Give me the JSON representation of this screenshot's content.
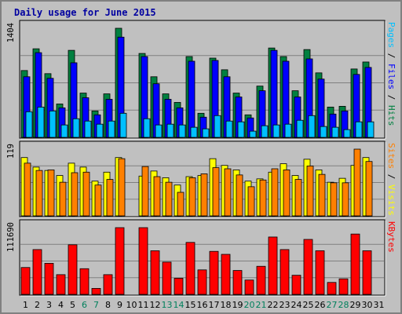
{
  "chart_data": {
    "type": "bar",
    "title": "Daily usage for June 2015",
    "categories": [
      "1",
      "2",
      "3",
      "4",
      "5",
      "6",
      "7",
      "8",
      "9",
      "10",
      "11",
      "12",
      "13",
      "14",
      "15",
      "16",
      "17",
      "18",
      "19",
      "20",
      "21",
      "22",
      "23",
      "24",
      "25",
      "26",
      "27",
      "28",
      "29",
      "30",
      "31"
    ],
    "weekend_days": [
      "6",
      "7",
      "13",
      "14",
      "20",
      "21",
      "27",
      "28"
    ],
    "panels": [
      {
        "id": "hits",
        "ymax_label": "1404",
        "ylim": [
          0,
          1404
        ],
        "series": [
          {
            "name": "Hits",
            "color": "#008040",
            "values": [
              860,
              1140,
              820,
              430,
              1120,
              570,
              340,
              560,
              1404,
              0,
              1080,
              780,
              560,
              450,
              1040,
              310,
              1020,
              870,
              570,
              290,
              660,
              1150,
              1040,
              600,
              1130,
              830,
              390,
              400,
              880,
              970,
              0
            ]
          },
          {
            "name": "Files",
            "color": "#0000ff",
            "values": [
              780,
              1090,
              760,
              380,
              960,
              510,
              290,
              490,
              1290,
              0,
              1040,
              690,
              490,
              380,
              980,
              260,
              990,
              780,
              520,
              250,
              600,
              1120,
              980,
              520,
              1010,
              750,
              300,
              340,
              810,
              900,
              0
            ]
          },
          {
            "name": "Pages",
            "color": "#00c0ff",
            "values": [
              330,
              390,
              340,
              160,
              240,
              210,
              170,
              210,
              310,
              0,
              240,
              160,
              170,
              160,
              130,
              110,
              280,
              210,
              200,
              80,
              150,
              160,
              170,
              220,
              280,
              140,
              130,
              100,
              200,
              200,
              0
            ]
          }
        ]
      },
      {
        "id": "visits",
        "ymax_label": "119",
        "ylim": [
          0,
          119
        ],
        "series": [
          {
            "name": "Visits",
            "color": "#ffff00",
            "values": [
              104,
              87,
              81,
              72,
              94,
              87,
              62,
              78,
              104,
              0,
              71,
              80,
              68,
              55,
              70,
              72,
              102,
              90,
              82,
              62,
              66,
              78,
              93,
              72,
              101,
              82,
              60,
              67,
              90,
              104,
              0
            ]
          },
          {
            "name": "Sites",
            "color": "#ff8000",
            "values": [
              94,
              81,
              82,
              60,
              77,
              78,
              55,
              65,
              102,
              0,
              88,
              70,
              60,
              42,
              68,
              75,
              86,
              84,
              73,
              52,
              64,
              84,
              82,
              65,
              89,
              74,
              59,
              59,
              119,
              97,
              0
            ]
          }
        ]
      },
      {
        "id": "kbytes",
        "ymax_label": "111690",
        "ylim": [
          0,
          111690
        ],
        "series": [
          {
            "name": "KBytes",
            "color": "#ff0000",
            "values": [
              45000,
              75000,
              52000,
              33000,
              83000,
              43000,
              10000,
              33000,
              111690,
              0,
              111690,
              73000,
              54000,
              27000,
              87000,
              41000,
              72000,
              67000,
              40000,
              24000,
              47000,
              96000,
              75000,
              32000,
              92000,
              73000,
              20000,
              26000,
              101000,
              73000,
              0
            ]
          }
        ]
      }
    ],
    "legend_right": [
      {
        "panel": "hits",
        "parts": [
          {
            "text": "Pages",
            "color": "#00c0ff"
          },
          {
            "text": " / ",
            "color": "#000000"
          },
          {
            "text": "Files",
            "color": "#0000ff"
          },
          {
            "text": " / ",
            "color": "#000000"
          },
          {
            "text": "Hits",
            "color": "#008040"
          }
        ]
      },
      {
        "panel": "visits",
        "parts": [
          {
            "text": "Sites",
            "color": "#ff8000"
          },
          {
            "text": " / ",
            "color": "#000000"
          },
          {
            "text": "Visits",
            "color": "#ffff00"
          }
        ]
      },
      {
        "panel": "kbytes",
        "parts": [
          {
            "text": "KBytes",
            "color": "#ff0000"
          }
        ]
      }
    ],
    "grid": true,
    "background_color": "#c0c0c0",
    "plot_color": "#c0c0c0",
    "weekend_label_color": "#00805c"
  }
}
